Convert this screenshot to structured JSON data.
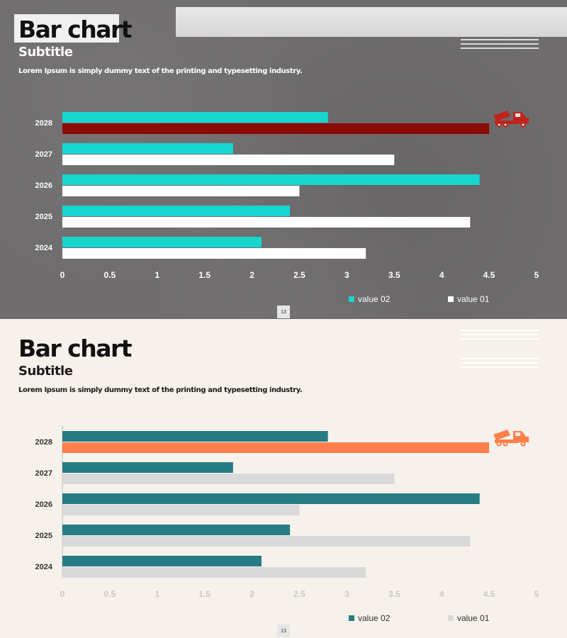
{
  "slides": [
    {
      "id": "dark",
      "title": "Bar chart",
      "subtitle": "Subtitle",
      "description": "Lorem Ipsum is simply dummy text of the printing and typesetting industry.",
      "page_number": "13",
      "colors": {
        "value_02": "#17d6d0",
        "value_01": "#ffffff",
        "highlight": "#8b0a06",
        "icon": "#c0231a",
        "tick_label": "#ffffff",
        "category_label": "#ffffff",
        "axis_line": "#7a7878"
      },
      "truck_icon": "tow-truck-icon"
    },
    {
      "id": "light",
      "title": "Bar chart",
      "subtitle": "Subtitle",
      "description": "Lorem Ipsum is simply dummy text of the printing and typesetting industry.",
      "page_number": "13",
      "colors": {
        "value_02": "#257c82",
        "value_01": "#d9d9d9",
        "highlight": "#ff7f4c",
        "icon": "#ff7f4c",
        "tick_label": "#c8c8c8",
        "category_label": "#333333",
        "axis_line": "#bfbfbf"
      },
      "truck_icon": "tow-truck-icon"
    }
  ],
  "chart_data": {
    "type": "bar",
    "orientation": "horizontal",
    "categories": [
      "2024",
      "2025",
      "2026",
      "2027",
      "2028"
    ],
    "series": [
      {
        "name": "value 02",
        "values": [
          2.1,
          2.4,
          4.4,
          1.8,
          2.8
        ]
      },
      {
        "name": "value 01",
        "values": [
          3.2,
          4.3,
          2.5,
          3.5,
          4.5
        ]
      }
    ],
    "highlight": {
      "category": "2028",
      "series": "value 01"
    },
    "xlim": [
      0,
      5
    ],
    "xticks": [
      0,
      0.5,
      1,
      1.5,
      2,
      2.5,
      3,
      3.5,
      4,
      4.5,
      5
    ],
    "xtick_labels": [
      "0",
      "0.5",
      "1",
      "1.5",
      "2",
      "2.5",
      "3",
      "3.5",
      "4",
      "4.5",
      "5"
    ],
    "legend_position": "bottom-right",
    "title": "Bar chart",
    "xlabel": "",
    "ylabel": ""
  }
}
